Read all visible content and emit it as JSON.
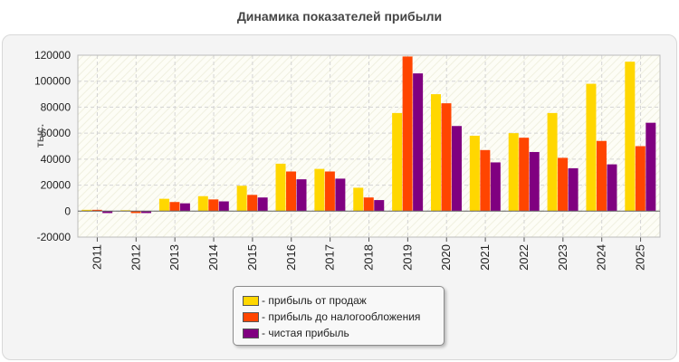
{
  "chart_data": {
    "type": "bar",
    "title": "Динамика показателей прибыли",
    "ylabel": "тыс.",
    "xlabel": "",
    "ylim": [
      -20000,
      120000
    ],
    "yticks": [
      120000,
      100000,
      80000,
      60000,
      40000,
      20000,
      0,
      -20000
    ],
    "categories": [
      "2011",
      "2012",
      "2013",
      "2014",
      "2015",
      "2016",
      "2017",
      "2018",
      "2019",
      "2020",
      "2021",
      "2022",
      "2023",
      "2024",
      "2025"
    ],
    "series": [
      {
        "name": "- прибыль от продаж",
        "color": "#FFD700",
        "values": [
          1000,
          700,
          9500,
          11500,
          19500,
          36500,
          32500,
          18000,
          75500,
          90000,
          58000,
          60000,
          75500,
          98000,
          115000
        ]
      },
      {
        "name": "- прибыль до налогообложения",
        "color": "#FF4500",
        "values": [
          1000,
          -1500,
          7000,
          9000,
          12500,
          30500,
          30500,
          10500,
          119000,
          83000,
          47000,
          56500,
          41000,
          54000,
          50000
        ]
      },
      {
        "name": "- чистая прибыль",
        "color": "#800080",
        "values": [
          -1500,
          -1500,
          6000,
          7500,
          10500,
          24500,
          25000,
          8500,
          106000,
          65500,
          37500,
          45500,
          33000,
          36000,
          68000
        ]
      }
    ],
    "grid": true,
    "legend_position": "bottom"
  }
}
